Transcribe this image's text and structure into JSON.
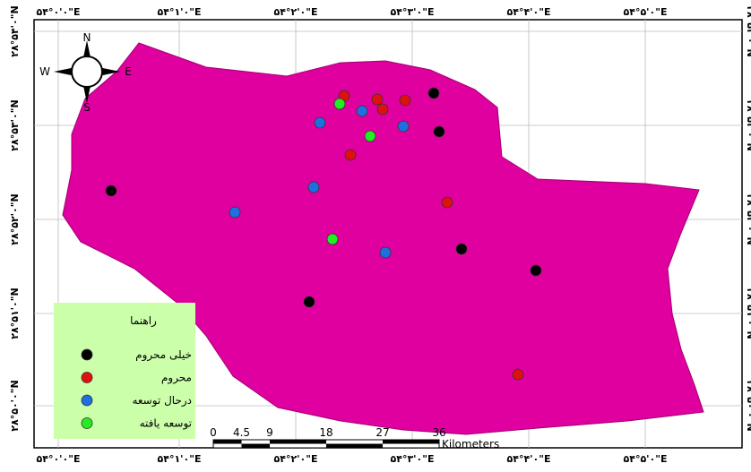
{
  "map": {
    "top_labels": [
      "۵۴°۰'۰\"E",
      "۵۴°۱'۰\"E",
      "۵۴°۲'۰\"E",
      "۵۴°۳'۰\"E",
      "۵۴°۴'۰\"E",
      "۵۴°۵'۰\"E"
    ],
    "bottom_labels": [
      "۵۴°۰'۰\"E",
      "۵۴°۱'۰\"E",
      "۵۴°۲'۰\"E",
      "۵۴°۳'۰\"E",
      "۵۴°۴'۰\"E",
      "۵۴°۵'۰\"E"
    ],
    "left_labels": [
      "۲۸°۵۴'۰\"N",
      "۲۸°۵۳'۰\"N",
      "۲۸°۵۲'۰\"N",
      "۲۸°۵۱'۰\"N",
      "۲۸°۵۰'۰\"N"
    ],
    "right_labels": [
      "۲۸°۵۴'۰\"N",
      "۲۸°۵۳'۰\"N",
      "۲۸°۵۲'۰\"N",
      "۲۸°۵۱'۰\"N",
      "۲۸°۵۰'۰\"N"
    ],
    "north_arrow": {
      "n": "N",
      "s": "S",
      "e": "E",
      "w": "W"
    },
    "legend": {
      "title": "راهنما",
      "items": [
        {
          "label": "خیلی محروم",
          "color": "#000000"
        },
        {
          "label": "محروم",
          "color": "#e01010"
        },
        {
          "label": "درحال توسعه",
          "color": "#1f6fe0"
        },
        {
          "label": "توسعه یافته",
          "color": "#22ee22"
        }
      ]
    },
    "scale_bar": {
      "ticks": [
        0,
        4.5,
        9,
        18,
        27,
        36
      ],
      "unit": "Kilometers"
    }
  }
}
